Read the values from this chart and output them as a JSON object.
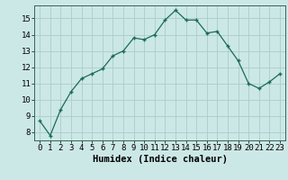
{
  "x": [
    0,
    1,
    2,
    3,
    4,
    5,
    6,
    7,
    8,
    9,
    10,
    11,
    12,
    13,
    14,
    15,
    16,
    17,
    18,
    19,
    20,
    21,
    22,
    23
  ],
  "y": [
    8.7,
    7.8,
    9.4,
    10.5,
    11.3,
    11.6,
    11.9,
    12.7,
    13.0,
    13.8,
    13.7,
    14.0,
    14.9,
    15.5,
    14.9,
    14.9,
    14.1,
    14.2,
    13.3,
    12.4,
    11.0,
    10.7,
    11.1,
    11.6
  ],
  "xlabel": "Humidex (Indice chaleur)",
  "xlim": [
    -0.5,
    23.5
  ],
  "ylim": [
    7.5,
    15.8
  ],
  "yticks": [
    8,
    9,
    10,
    11,
    12,
    13,
    14,
    15
  ],
  "xticks": [
    0,
    1,
    2,
    3,
    4,
    5,
    6,
    7,
    8,
    9,
    10,
    11,
    12,
    13,
    14,
    15,
    16,
    17,
    18,
    19,
    20,
    21,
    22,
    23
  ],
  "line_color": "#1a6b5a",
  "marker_color": "#1a6b5a",
  "bg_color": "#cce8e6",
  "grid_color": "#aaccca",
  "label_fontsize": 7.5,
  "tick_fontsize": 6.5
}
